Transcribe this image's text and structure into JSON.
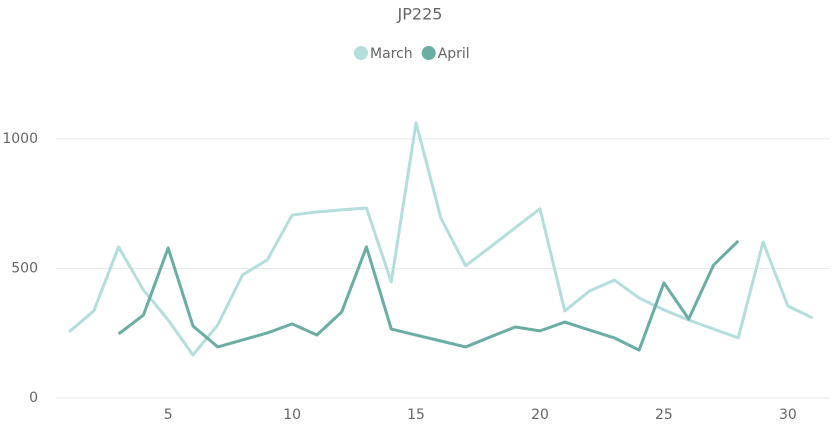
{
  "chart_data": {
    "type": "line",
    "title": "JP225",
    "x": [
      1,
      2,
      3,
      4,
      5,
      6,
      7,
      8,
      9,
      10,
      11,
      12,
      13,
      14,
      15,
      16,
      17,
      18,
      19,
      20,
      21,
      22,
      23,
      24,
      25,
      26,
      27,
      28,
      29,
      30,
      31
    ],
    "series": [
      {
        "name": "March",
        "color": "#b3dedb",
        "values": [
          255,
          336,
          583,
          417,
          301,
          166,
          282,
          475,
          533,
          706,
          718,
          726,
          733,
          448,
          1062,
          695,
          510,
          583,
          657,
          730,
          336,
          413,
          455,
          386,
          340,
          301,
          266,
          232,
          602,
          355,
          309
        ]
      },
      {
        "name": "April",
        "color": "#6aada3",
        "values": [
          null,
          null,
          247,
          320,
          579,
          278,
          197,
          224,
          251,
          286,
          243,
          332,
          583,
          266,
          243,
          220,
          197,
          236,
          274,
          259,
          293,
          262,
          232,
          185,
          444,
          305,
          513,
          606,
          null,
          null,
          null
        ]
      }
    ],
    "xlim": [
      0.45,
      31.7
    ],
    "xticks": [
      5,
      10,
      15,
      20,
      25,
      30
    ],
    "ylim": [
      0,
      1150
    ],
    "yticks": [
      0,
      500,
      1000
    ],
    "grid": true
  }
}
